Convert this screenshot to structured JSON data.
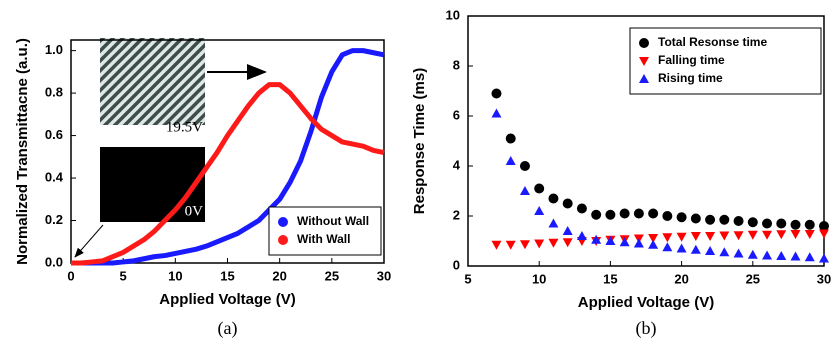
{
  "chart_data": [
    {
      "type": "line",
      "caption": "(a)",
      "xlabel": "Applied Voltage (V)",
      "ylabel": "Normalized Transmittacne (a.u.)",
      "annotations": [
        "19.5V",
        "0V"
      ],
      "x": [
        0,
        1,
        2,
        3,
        4,
        5,
        6,
        7,
        8,
        9,
        10,
        11,
        12,
        13,
        14,
        15,
        16,
        17,
        18,
        19,
        20,
        21,
        22,
        23,
        24,
        25,
        26,
        27,
        28,
        29,
        30
      ],
      "series": [
        {
          "name": "Without Wall",
          "color": "#1a1aff",
          "values": [
            0,
            0,
            0,
            0,
            0,
            0.005,
            0.01,
            0.02,
            0.03,
            0.035,
            0.045,
            0.055,
            0.065,
            0.08,
            0.1,
            0.12,
            0.14,
            0.17,
            0.2,
            0.25,
            0.3,
            0.38,
            0.48,
            0.62,
            0.78,
            0.9,
            0.98,
            1.0,
            1.0,
            0.99,
            0.98
          ]
        },
        {
          "name": "With Wall",
          "color": "#ff1a1a",
          "values": [
            0,
            0,
            0.005,
            0.01,
            0.03,
            0.05,
            0.08,
            0.11,
            0.15,
            0.2,
            0.25,
            0.31,
            0.38,
            0.45,
            0.52,
            0.6,
            0.67,
            0.74,
            0.8,
            0.84,
            0.84,
            0.8,
            0.74,
            0.68,
            0.63,
            0.6,
            0.57,
            0.56,
            0.55,
            0.53,
            0.52
          ]
        }
      ],
      "xlim": [
        0,
        30
      ],
      "xticks": [
        0,
        5,
        10,
        15,
        20,
        25,
        30
      ],
      "ylim": [
        0,
        1.05
      ],
      "yticks": [
        {
          "value": 0,
          "label": "0.0"
        },
        0.2,
        0.4,
        0.6,
        0.8,
        {
          "value": 1,
          "label": "1.0"
        }
      ],
      "legend": "lower right"
    },
    {
      "type": "scatter",
      "caption": "(b)",
      "xlabel": "Applied Voltage (V)",
      "ylabel": "Response Time (ms)",
      "x": [
        7,
        8,
        9,
        10,
        11,
        12,
        13,
        14,
        15,
        16,
        17,
        18,
        19,
        20,
        21,
        22,
        23,
        24,
        25,
        26,
        27,
        28,
        29,
        30
      ],
      "series": [
        {
          "name": "Total Resonse time",
          "color": "#000000",
          "marker": "circle",
          "values": [
            6.9,
            5.1,
            4.0,
            3.1,
            2.7,
            2.5,
            2.3,
            2.05,
            2.05,
            2.1,
            2.1,
            2.1,
            2.0,
            1.95,
            1.9,
            1.85,
            1.85,
            1.8,
            1.75,
            1.7,
            1.7,
            1.65,
            1.65,
            1.6
          ]
        },
        {
          "name": "Falling time",
          "color": "#ff0000",
          "marker": "triangle-down",
          "values": [
            0.85,
            0.85,
            0.87,
            0.9,
            0.93,
            0.95,
            1.0,
            1.0,
            1.05,
            1.07,
            1.1,
            1.12,
            1.15,
            1.17,
            1.2,
            1.2,
            1.22,
            1.23,
            1.25,
            1.25,
            1.27,
            1.28,
            1.28,
            1.3
          ]
        },
        {
          "name": "Rising time",
          "color": "#1a1aff",
          "marker": "triangle-up",
          "values": [
            6.1,
            4.2,
            3.0,
            2.2,
            1.7,
            1.4,
            1.2,
            1.05,
            1.0,
            0.95,
            0.9,
            0.85,
            0.75,
            0.7,
            0.65,
            0.6,
            0.55,
            0.5,
            0.45,
            0.42,
            0.4,
            0.38,
            0.35,
            0.3
          ]
        }
      ],
      "xlim": [
        5,
        30
      ],
      "xticks": [
        5,
        10,
        15,
        20,
        25,
        30
      ],
      "ylim": [
        0,
        10
      ],
      "yticks": [
        0,
        2,
        4,
        6,
        8,
        10
      ],
      "legend": "upper right"
    }
  ]
}
